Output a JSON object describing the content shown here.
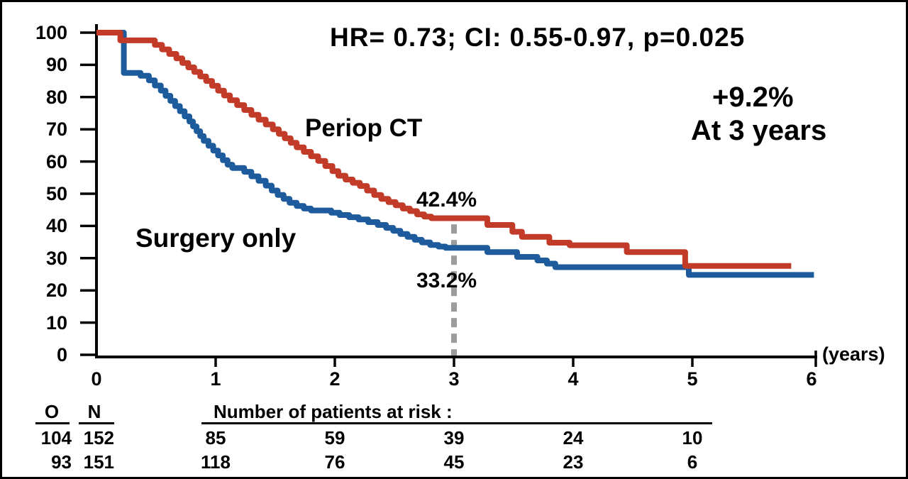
{
  "figure": {
    "background": "#ffffff",
    "border_color": "#000000",
    "text_color": "#000000"
  },
  "annotations": {
    "stats_line": "HR= 0.73; CI: 0.55-0.97, p=0.025",
    "benefit_line1": "+9.2%",
    "benefit_line2": "At 3 years",
    "pct_at_3y_red": "42.4%",
    "pct_at_3y_blue": "33.2%"
  },
  "chart_data": {
    "type": "line",
    "subtype": "kaplan-meier-step",
    "grid": false,
    "legend_position": "labels-on-plot",
    "x_axis": {
      "ticks": [
        0,
        1,
        2,
        3,
        4,
        5,
        6
      ],
      "unit": "(years)",
      "range": [
        0,
        6.1
      ]
    },
    "y_axis": {
      "ticks": [
        0,
        10,
        20,
        30,
        40,
        50,
        60,
        70,
        80,
        90,
        100
      ],
      "range": [
        0,
        100
      ]
    },
    "reference_line": {
      "x": 3,
      "y_top": 40.5,
      "style": "dashed",
      "color": "#9c9c9c"
    },
    "series": [
      {
        "name": "Surgery only",
        "color": "#1d5b9c",
        "pct_at_3_years": 33.2,
        "points": [
          [
            0,
            100
          ],
          [
            0.23,
            87.5
          ],
          [
            0.37,
            86.6
          ],
          [
            0.44,
            85.2
          ],
          [
            0.49,
            83.6
          ],
          [
            0.54,
            82.0
          ],
          [
            0.58,
            80.4
          ],
          [
            0.62,
            78.8
          ],
          [
            0.66,
            77.2
          ],
          [
            0.7,
            75.6
          ],
          [
            0.74,
            74.0
          ],
          [
            0.78,
            72.4
          ],
          [
            0.81,
            70.9
          ],
          [
            0.84,
            69.4
          ],
          [
            0.87,
            67.9
          ],
          [
            0.9,
            66.4
          ],
          [
            0.94,
            64.9
          ],
          [
            0.98,
            63.4
          ],
          [
            1.02,
            61.9
          ],
          [
            1.06,
            60.4
          ],
          [
            1.1,
            59.0
          ],
          [
            1.14,
            58.0
          ],
          [
            1.24,
            56.8
          ],
          [
            1.3,
            55.4
          ],
          [
            1.36,
            54.0
          ],
          [
            1.42,
            52.5
          ],
          [
            1.47,
            51.0
          ],
          [
            1.52,
            49.6
          ],
          [
            1.57,
            48.4
          ],
          [
            1.62,
            47.2
          ],
          [
            1.68,
            46.2
          ],
          [
            1.74,
            45.4
          ],
          [
            1.8,
            44.8
          ],
          [
            1.97,
            44.1
          ],
          [
            2.04,
            43.4
          ],
          [
            2.12,
            42.7
          ],
          [
            2.2,
            42.0
          ],
          [
            2.28,
            41.2
          ],
          [
            2.36,
            40.3
          ],
          [
            2.43,
            39.4
          ],
          [
            2.49,
            38.5
          ],
          [
            2.55,
            37.5
          ],
          [
            2.61,
            36.6
          ],
          [
            2.67,
            35.7
          ],
          [
            2.73,
            34.9
          ],
          [
            2.8,
            34.1
          ],
          [
            2.87,
            33.6
          ],
          [
            2.93,
            33.2
          ],
          [
            3.28,
            31.9
          ],
          [
            3.53,
            30.4
          ],
          [
            3.7,
            29.3
          ],
          [
            3.78,
            28.3
          ],
          [
            3.85,
            27.2
          ],
          [
            4.97,
            24.8
          ],
          [
            6.02,
            24.8
          ]
        ]
      },
      {
        "name": "Periop CT",
        "color": "#c23a28",
        "pct_at_3_years": 42.4,
        "points": [
          [
            0,
            100
          ],
          [
            0.2,
            97.6
          ],
          [
            0.49,
            96.2
          ],
          [
            0.55,
            94.8
          ],
          [
            0.61,
            93.4
          ],
          [
            0.67,
            92.0
          ],
          [
            0.72,
            90.6
          ],
          [
            0.77,
            89.2
          ],
          [
            0.82,
            87.8
          ],
          [
            0.87,
            86.4
          ],
          [
            0.92,
            85.0
          ],
          [
            0.97,
            83.5
          ],
          [
            1.02,
            82.0
          ],
          [
            1.07,
            80.5
          ],
          [
            1.12,
            79.0
          ],
          [
            1.18,
            77.5
          ],
          [
            1.24,
            76.0
          ],
          [
            1.3,
            74.5
          ],
          [
            1.36,
            73.0
          ],
          [
            1.42,
            71.5
          ],
          [
            1.48,
            70.0
          ],
          [
            1.53,
            68.6
          ],
          [
            1.58,
            67.2
          ],
          [
            1.63,
            65.8
          ],
          [
            1.68,
            64.4
          ],
          [
            1.74,
            63.0
          ],
          [
            1.8,
            61.6
          ],
          [
            1.86,
            60.2
          ],
          [
            1.92,
            58.6
          ],
          [
            1.98,
            57.0
          ],
          [
            2.03,
            55.6
          ],
          [
            2.09,
            54.4
          ],
          [
            2.15,
            53.4
          ],
          [
            2.21,
            52.4
          ],
          [
            2.27,
            51.0
          ],
          [
            2.33,
            49.6
          ],
          [
            2.39,
            48.4
          ],
          [
            2.45,
            47.4
          ],
          [
            2.51,
            46.4
          ],
          [
            2.57,
            45.4
          ],
          [
            2.63,
            44.6
          ],
          [
            2.69,
            43.6
          ],
          [
            2.75,
            42.9
          ],
          [
            2.81,
            42.4
          ],
          [
            3.28,
            40.3
          ],
          [
            3.49,
            38.2
          ],
          [
            3.57,
            36.6
          ],
          [
            3.8,
            34.8
          ],
          [
            3.97,
            34.0
          ],
          [
            4.45,
            31.9
          ],
          [
            4.94,
            27.6
          ],
          [
            5.83,
            27.6
          ]
        ]
      }
    ]
  },
  "risk_table": {
    "col_o_header": "O",
    "col_n_header": "N",
    "title": "Number of patients at risk :",
    "rows": [
      {
        "o": "104",
        "n": "152",
        "at_risk": [
          "85",
          "59",
          "39",
          "24",
          "10"
        ]
      },
      {
        "o": "93",
        "n": "151",
        "at_risk": [
          "118",
          "76",
          "45",
          "23",
          "6"
        ]
      }
    ]
  }
}
